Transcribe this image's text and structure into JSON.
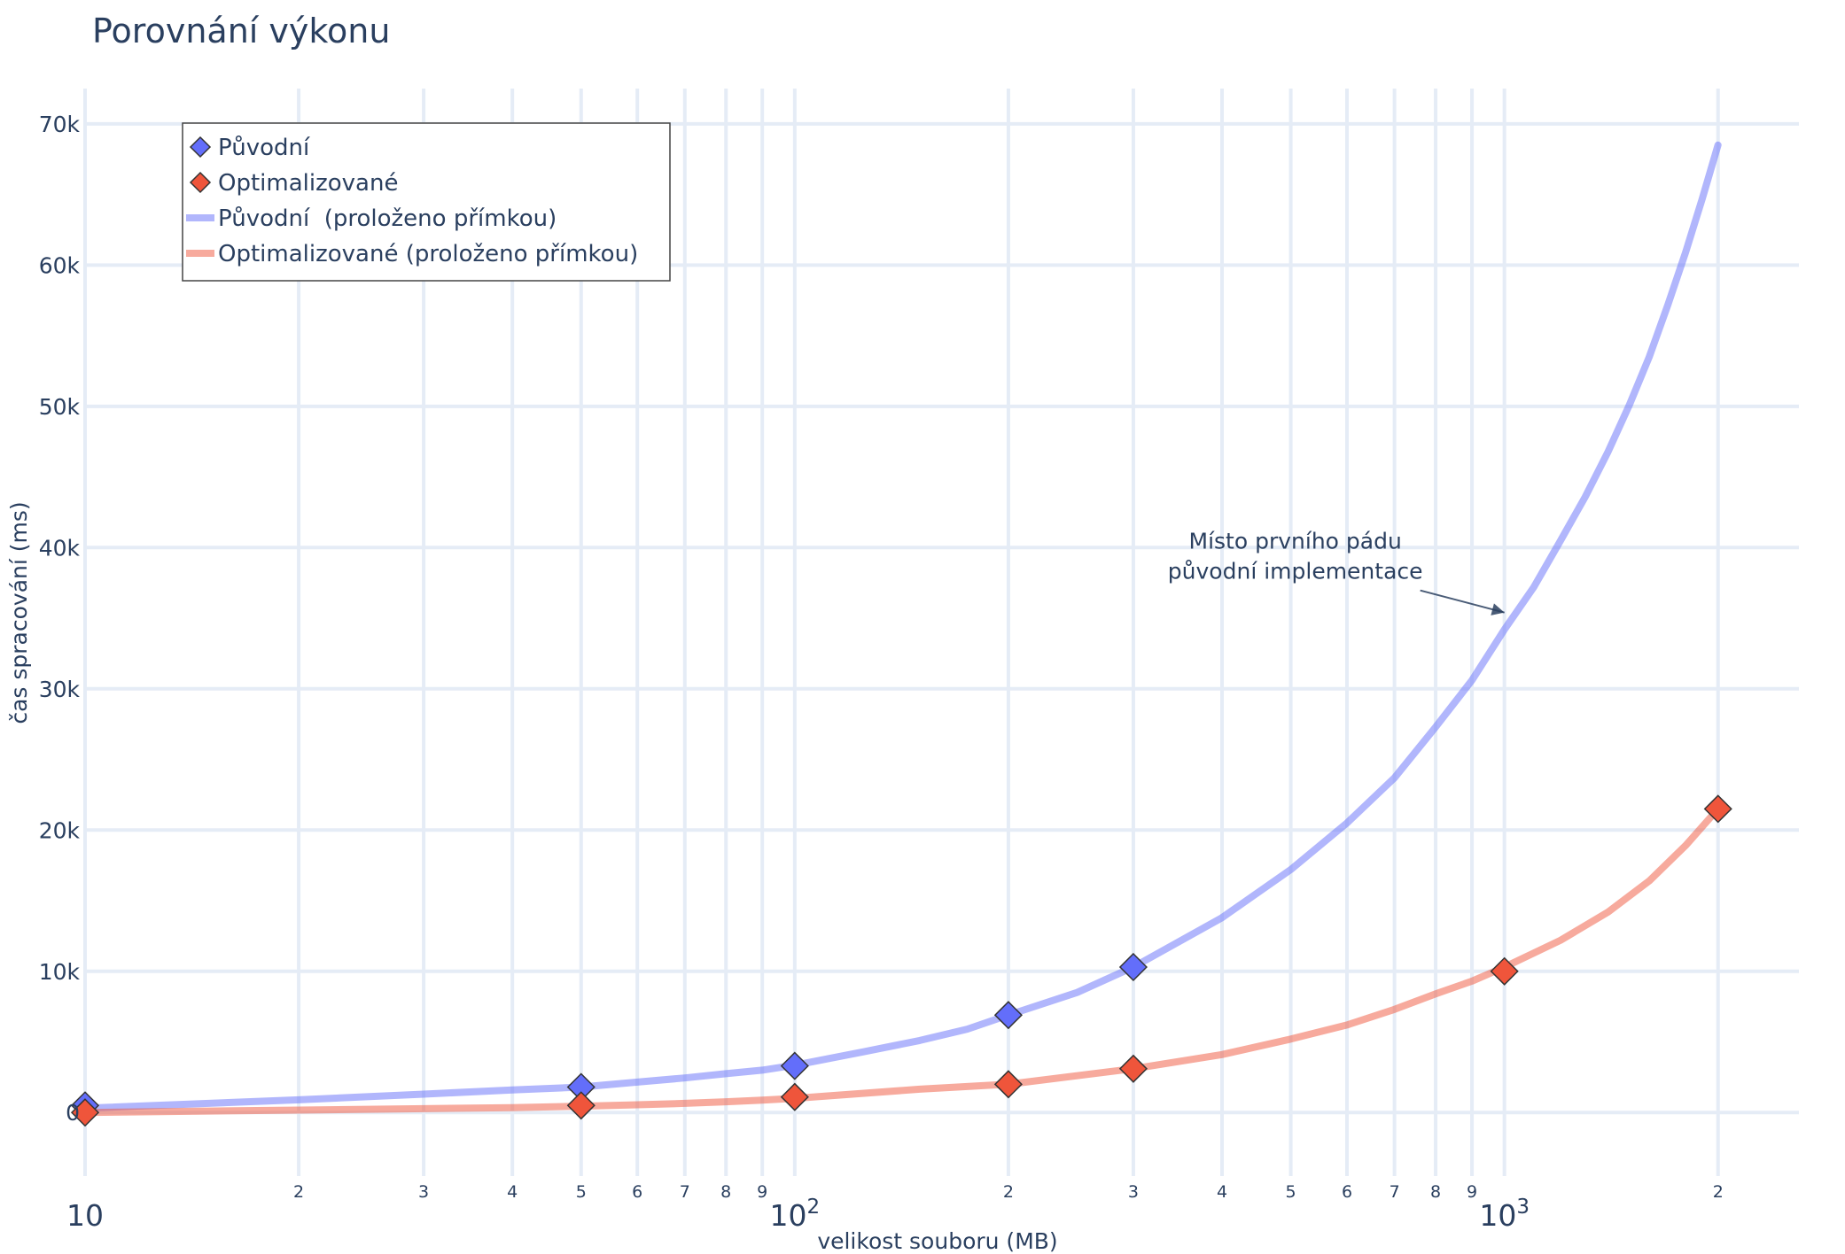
{
  "chart_data": {
    "type": "scatter",
    "title": "Porovnání výkonu",
    "xlabel": "velikost souboru (MB)",
    "ylabel": "čas spracování (ms)",
    "x_scale": "log",
    "xlim": [
      10,
      2600
    ],
    "ylim": [
      -4500,
      72500
    ],
    "grid": true,
    "legend_position": "top-left",
    "yticks": [
      0,
      10000,
      20000,
      30000,
      40000,
      50000,
      60000,
      70000
    ],
    "ytick_labels": [
      "0",
      "10k",
      "20k",
      "30k",
      "40k",
      "50k",
      "60k",
      "70k"
    ],
    "xticks_major": [
      10,
      100,
      1000
    ],
    "xtick_major_labels": [
      "10",
      "10²",
      "10³"
    ],
    "xticks_minor": [
      20,
      30,
      40,
      50,
      60,
      70,
      80,
      90,
      200,
      300,
      400,
      500,
      600,
      700,
      800,
      900,
      2000
    ],
    "xtick_minor_labels": [
      "2",
      "3",
      "4",
      "5",
      "6",
      "7",
      "8",
      "9",
      "2",
      "3",
      "4",
      "5",
      "6",
      "7",
      "8",
      "9",
      "2"
    ],
    "series": [
      {
        "name": "Původní",
        "mode": "markers",
        "marker": "diamond",
        "color": "#636efa",
        "x": [
          10,
          50,
          100,
          200,
          300
        ],
        "y": [
          500,
          1800,
          3300,
          6900,
          10300
        ]
      },
      {
        "name": "Optimalizované",
        "mode": "markers",
        "marker": "diamond",
        "color": "#ef553b",
        "x": [
          10,
          50,
          100,
          200,
          300,
          1000,
          2000
        ],
        "y": [
          0,
          500,
          1100,
          2000,
          3100,
          10000,
          21500
        ]
      },
      {
        "name": "Původní  (proloženo přímkou)",
        "mode": "lines",
        "color": "#636efa",
        "x": [
          10,
          20,
          30,
          40,
          50,
          60,
          70,
          80,
          90,
          100,
          125,
          150,
          175,
          200,
          250,
          300,
          400,
          500,
          600,
          700,
          800,
          900,
          1000,
          1100,
          1200,
          1300,
          1400,
          1500,
          1600,
          1700,
          1800,
          1900,
          2000
        ],
        "y": [
          300,
          900,
          1300,
          1600,
          1800,
          2150,
          2450,
          2750,
          3000,
          3350,
          4300,
          5100,
          5900,
          6900,
          8500,
          10300,
          13800,
          17200,
          20500,
          23700,
          27300,
          30600,
          34200,
          37200,
          40500,
          43600,
          46800,
          50100,
          53500,
          57200,
          60900,
          64700,
          68500
        ]
      },
      {
        "name": "Optimalizované (proloženo přímkou)",
        "mode": "lines",
        "color": "#ef553b",
        "x": [
          10,
          20,
          30,
          40,
          50,
          60,
          70,
          80,
          90,
          100,
          150,
          200,
          300,
          400,
          500,
          600,
          700,
          800,
          900,
          1000,
          1200,
          1400,
          1600,
          1800,
          2000
        ],
        "y": [
          0,
          170,
          270,
          350,
          450,
          550,
          650,
          760,
          880,
          1000,
          1650,
          2000,
          3100,
          4100,
          5200,
          6200,
          7300,
          8400,
          9300,
          10300,
          12200,
          14200,
          16400,
          18900,
          21500
        ]
      }
    ],
    "annotations": [
      {
        "text_lines": [
          "Místo prvního pádu",
          "původní implementace"
        ],
        "x": 1000,
        "y": 35400,
        "arrow": true
      }
    ]
  }
}
